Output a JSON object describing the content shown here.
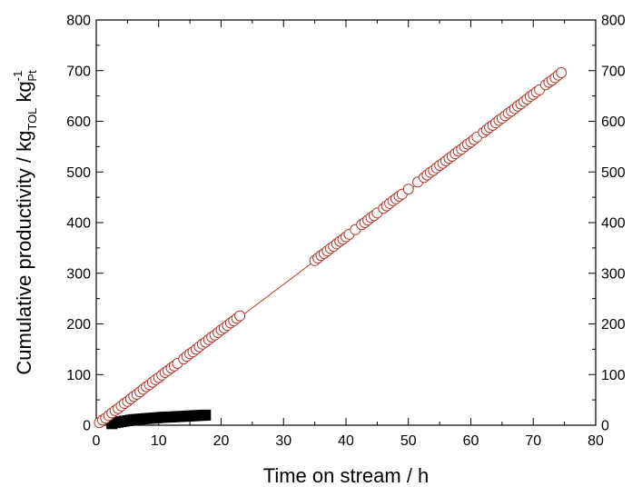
{
  "chart_data": {
    "type": "scatter",
    "xlabel": "Time on stream / h",
    "ylabel": {
      "main": "Cumulative productivity / kg",
      "sub1": "TOL",
      "mid": " kg",
      "sub2": "Pt",
      "sup": "-1"
    },
    "xlim": [
      0,
      80
    ],
    "ylim": [
      0,
      800
    ],
    "x_ticks": [
      "0",
      "10",
      "20",
      "30",
      "40",
      "50",
      "60",
      "70",
      "80"
    ],
    "y_ticks": [
      "0",
      "100",
      "200",
      "300",
      "400",
      "500",
      "600",
      "700",
      "800"
    ],
    "right_axis_ticks": [
      "0",
      "100",
      "200",
      "300",
      "400",
      "500",
      "600",
      "700",
      "800"
    ],
    "grid": false,
    "series": [
      {
        "marker": "open-circle",
        "color": "#b03a2e",
        "fit_line": {
          "x": [
            0,
            75
          ],
          "y": [
            0,
            695
          ]
        },
        "x": [
          0.5,
          1.0,
          1.5,
          2.0,
          2.5,
          3.0,
          3.5,
          4.0,
          4.5,
          5.0,
          5.5,
          6.0,
          6.5,
          7.0,
          7.5,
          8.0,
          8.5,
          9.0,
          9.5,
          10.0,
          10.5,
          11.0,
          11.5,
          12.0,
          12.5,
          13.0,
          14.0,
          14.5,
          15.0,
          15.5,
          16.0,
          16.5,
          17.0,
          17.5,
          18.0,
          18.5,
          19.0,
          19.5,
          20.0,
          20.5,
          21.0,
          21.5,
          22.0,
          22.5,
          23.0,
          35.0,
          35.5,
          36.0,
          36.5,
          37.0,
          37.5,
          38.0,
          38.5,
          39.0,
          39.5,
          40.0,
          40.5,
          41.5,
          42.5,
          43.0,
          43.5,
          44.0,
          44.5,
          45.0,
          46.0,
          46.5,
          47.0,
          47.5,
          48.0,
          48.5,
          49.0,
          50.0,
          51.5,
          52.5,
          53.0,
          53.5,
          54.0,
          54.5,
          55.0,
          55.5,
          56.0,
          56.5,
          57.0,
          57.5,
          58.0,
          58.5,
          59.0,
          59.5,
          60.0,
          60.5,
          61.0,
          62.0,
          62.5,
          63.0,
          63.5,
          64.0,
          64.5,
          65.0,
          65.5,
          66.0,
          66.5,
          67.0,
          67.5,
          68.0,
          68.5,
          69.0,
          69.5,
          70.0,
          70.5,
          71.0,
          72.0,
          72.5,
          73.0,
          73.5,
          74.0,
          74.5
        ],
        "y": [
          5,
          10,
          14,
          19,
          24,
          29,
          33,
          38,
          43,
          47,
          52,
          57,
          61,
          66,
          71,
          76,
          80,
          85,
          90,
          94,
          99,
          104,
          108,
          113,
          117,
          122,
          131,
          136,
          141,
          145,
          150,
          155,
          160,
          164,
          169,
          174,
          178,
          183,
          188,
          192,
          197,
          202,
          206,
          211,
          216,
          325,
          330,
          335,
          339,
          344,
          349,
          353,
          358,
          363,
          367,
          372,
          377,
          386,
          396,
          400,
          405,
          410,
          414,
          419,
          428,
          433,
          438,
          443,
          447,
          452,
          456,
          466,
          480,
          489,
          494,
          499,
          503,
          508,
          513,
          517,
          522,
          527,
          531,
          536,
          541,
          545,
          550,
          555,
          559,
          564,
          569,
          578,
          583,
          588,
          592,
          597,
          602,
          606,
          611,
          616,
          620,
          625,
          630,
          634,
          639,
          644,
          649,
          653,
          658,
          662,
          672,
          677,
          681,
          686,
          691,
          696
        ]
      },
      {
        "marker": "filled-square",
        "color": "#000000",
        "x": [
          2.5,
          3.0,
          3.5,
          4.0,
          4.5,
          5.0,
          5.5,
          6.0,
          6.5,
          7.0,
          7.5,
          8.0,
          8.5,
          9.0,
          9.5,
          10.0,
          10.5,
          11.0,
          11.5,
          12.0,
          12.5,
          13.0,
          13.5,
          14.0,
          14.5,
          15.0,
          15.5,
          16.0,
          16.5,
          17.0,
          17.5
        ],
        "y": [
          3,
          5,
          6,
          7,
          8,
          9,
          10,
          11,
          11.5,
          12,
          12.5,
          13,
          13.5,
          14,
          14.5,
          15,
          15.5,
          15.8,
          16,
          16.3,
          16.6,
          17,
          17.3,
          17.6,
          18,
          18.3,
          18.6,
          19,
          19.3,
          19.6,
          20
        ]
      }
    ]
  }
}
